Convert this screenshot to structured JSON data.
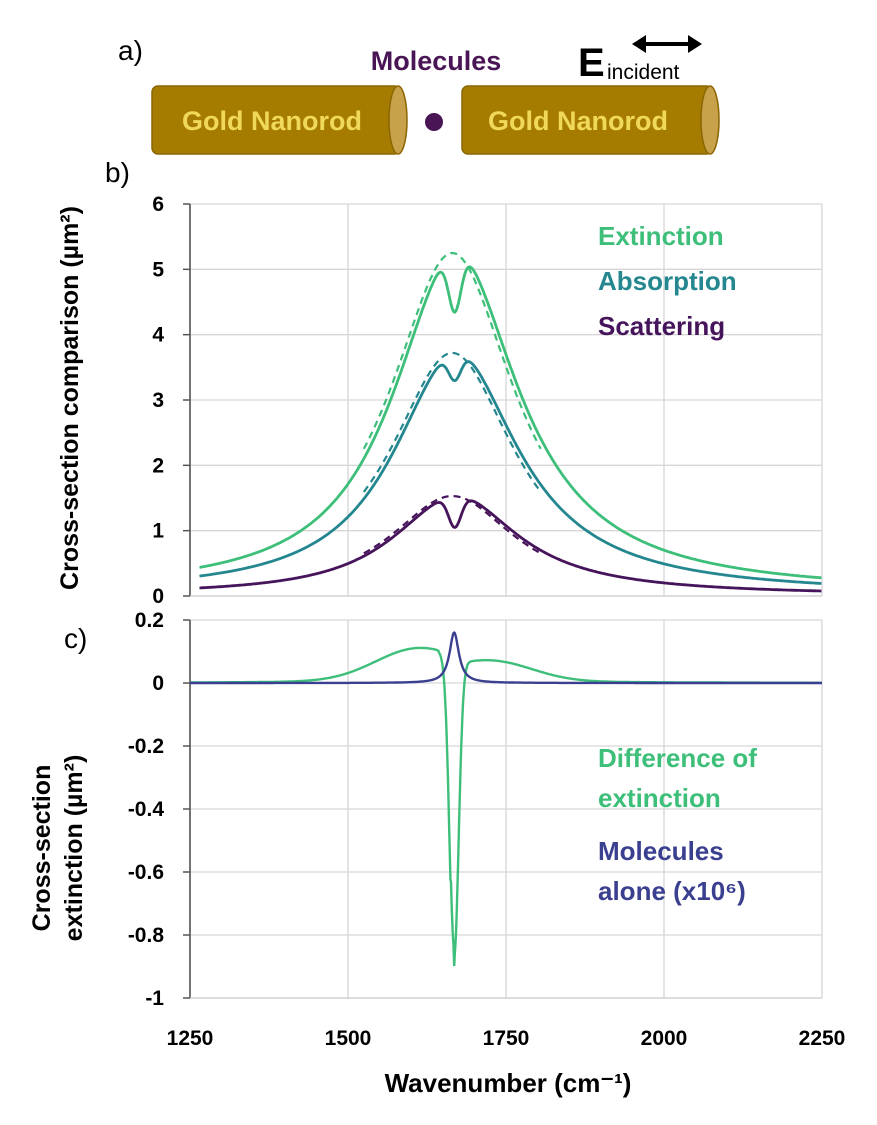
{
  "panel_a": {
    "label": "a)",
    "nanorod_left": "Gold Nanorod",
    "nanorod_right": "Gold Nanorod",
    "molecules": "Molecules",
    "e_symbol": "E",
    "e_subscript": "incident",
    "colors": {
      "rod_body": "#a67c00",
      "rod_cap": "#c8a24a",
      "rod_text": "#f0d85a",
      "molecule": "#4a1555"
    }
  },
  "chart_data": [
    {
      "panel": "b)",
      "type": "line",
      "ylabel": "Cross-section comparison (µm²)",
      "xlim": [
        1250,
        2250
      ],
      "ylim": [
        0,
        6
      ],
      "yticks": [
        "0",
        "1",
        "2",
        "3",
        "4",
        "5",
        "6"
      ],
      "xtick_values": [
        1250,
        1500,
        1750,
        2000,
        2250
      ],
      "grid": true,
      "legend_position": "top-right",
      "series": [
        {
          "name": "Extinction",
          "color": "#3dbf7a",
          "peak": 5.25,
          "center": 1665,
          "width": 120,
          "baseline": 0.05,
          "dip": 0.9,
          "dip_width": 10,
          "x_start": 1265,
          "x_end": 2250
        },
        {
          "name": "Absorption",
          "color": "#24878f",
          "peak": 3.72,
          "center": 1665,
          "width": 120,
          "baseline": 0.03,
          "dip": 0.42,
          "dip_width": 10,
          "x_start": 1265,
          "x_end": 2250
        },
        {
          "name": "Scattering",
          "color": "#46145a",
          "peak": 1.53,
          "center": 1665,
          "width": 120,
          "baseline": 0.01,
          "dip": 0.48,
          "dip_width": 10,
          "x_start": 1265,
          "x_end": 2250
        }
      ]
    },
    {
      "panel": "c)",
      "type": "line",
      "ylabel_line1": "Cross-section",
      "ylabel_line2": "extinction (µm²)",
      "xlabel": "Wavenumber (cm⁻¹)",
      "xlim": [
        1250,
        2250
      ],
      "ylim": [
        -1,
        0.2
      ],
      "yticks": [
        "0.2",
        "0",
        "-0.2",
        "-0.4",
        "-0.6",
        "-0.8",
        "-1"
      ],
      "xticks": [
        "1250",
        "1500",
        "1750",
        "2000",
        "2250"
      ],
      "grid": true,
      "legend_position": "bottom-right",
      "series": [
        {
          "name_line1": "Difference of",
          "name_line2": "extinction",
          "color": "#3dbf7a",
          "min": -0.93,
          "min_at": 1668,
          "left_peak": 0.1,
          "left_peak_at": 1610,
          "right_peak": 0.06,
          "right_peak_at": 1730
        },
        {
          "name_line1": "Molecules",
          "name_line2": "alone (x10⁶)",
          "color": "#3a3f8f",
          "peak": 0.16,
          "peak_at": 1668
        }
      ]
    }
  ]
}
